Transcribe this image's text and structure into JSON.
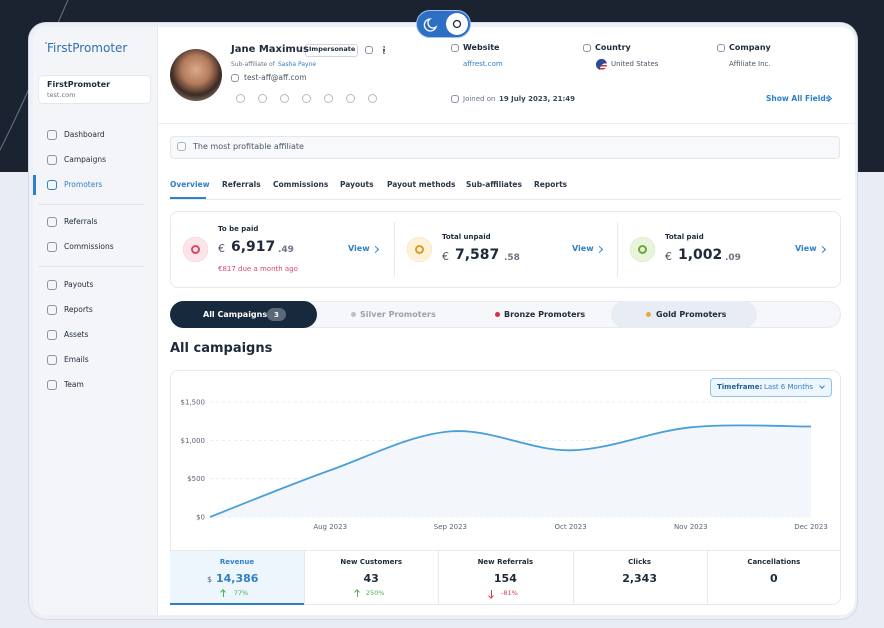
{
  "sidebar": {
    "brand": "FirstPromoter",
    "account": {
      "name": "FirstPromoter",
      "domain": "test.com"
    },
    "nav": [
      "Dashboard",
      "Campaigns",
      "Promoters",
      "Referrals",
      "Commissions",
      "Payouts",
      "Reports",
      "Assets",
      "Emails",
      "Team"
    ]
  },
  "profile": {
    "name": "Jane Maximus",
    "badge": "Impersonate",
    "sub_prefix": "Sub-affiliate of",
    "sub_parent": "Sasha Payne",
    "email": "test-aff@aff.com",
    "joined_prefix": "Joined on",
    "joined": "19 July 2023, 21:49"
  },
  "fields": [
    {
      "label": "Website",
      "value": "affrest.com"
    },
    {
      "label": "Country",
      "value": "United States"
    },
    {
      "label": "Company",
      "value": "Affiliate Inc."
    }
  ],
  "show_all": "Show All Fields",
  "note": "The most profitable affiliate",
  "tabs": [
    "Overview",
    "Referrals",
    "Commissions",
    "Payouts",
    "Payout methods",
    "Sub-affiliates",
    "Reports"
  ],
  "balances": [
    {
      "label": "To be paid",
      "currency": "€",
      "amount": "6,917",
      "cents": ".49",
      "note": "€817 due a month ago",
      "action": "View"
    },
    {
      "label": "Total unpaid",
      "currency": "€",
      "amount": "7,587",
      "cents": ".58",
      "action": "View"
    },
    {
      "label": "Total paid",
      "currency": "€",
      "amount": "1,002",
      "cents": ".09",
      "action": "View"
    }
  ],
  "campaign_tabs": [
    {
      "label": "All Campaigns",
      "count": 3
    },
    {
      "label": "Silver Promoters"
    },
    {
      "label": "Bronze Promoters"
    },
    {
      "label": "Gold Promoters"
    }
  ],
  "section_title": "All campaigns",
  "timeframe": {
    "label": "Timeframe:",
    "value": "Last 6 Months"
  },
  "chart_data": {
    "type": "line",
    "categories": [
      null,
      "Aug 2023",
      "Sep 2023",
      "Oct 2023",
      "Nov 2023",
      "Dec 2023"
    ],
    "series": [
      {
        "name": "Revenue",
        "color": "#4a9fd8",
        "values": [
          0,
          610,
          1117,
          870,
          1170,
          1180
        ]
      }
    ],
    "ylim": [
      0,
      1500
    ],
    "yticks": [
      {
        "value": 0,
        "label": "$0"
      },
      {
        "value": 500,
        "label": "$500"
      },
      {
        "value": 1000,
        "label": "$1,000"
      },
      {
        "value": 1500,
        "label": "$1,500"
      }
    ],
    "grid": true
  },
  "metrics": [
    {
      "label": "Revenue",
      "currency": "$",
      "value": "14,386",
      "change": "77%",
      "trend": "up"
    },
    {
      "label": "New Customers",
      "value": "43",
      "change": "250%",
      "trend": "up"
    },
    {
      "label": "New Referrals",
      "value": "154",
      "change": "-81%",
      "trend": "down"
    },
    {
      "label": "Clicks",
      "value": "2,343"
    },
    {
      "label": "Cancellations",
      "value": "0"
    }
  ]
}
